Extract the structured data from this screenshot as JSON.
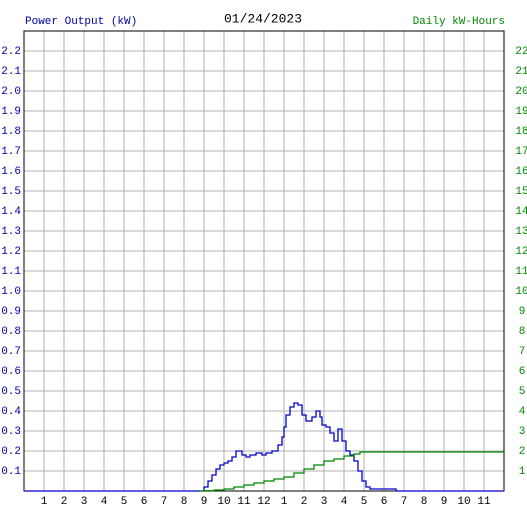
{
  "chart_data": {
    "type": "line",
    "title": "01/24/2023",
    "y_label": "Power Output (kW)",
    "y2_label": "Daily kW-Hours",
    "step": true,
    "grid": true,
    "xlim": [
      0,
      24
    ],
    "xticks": [
      1,
      2,
      3,
      4,
      5,
      6,
      7,
      8,
      9,
      10,
      11,
      12,
      {
        "value": 13,
        "label": "1"
      },
      {
        "value": 14,
        "label": "2"
      },
      {
        "value": 15,
        "label": "3"
      },
      {
        "value": 16,
        "label": "4"
      },
      {
        "value": 17,
        "label": "5"
      },
      {
        "value": 18,
        "label": "6"
      },
      {
        "value": 19,
        "label": "7"
      },
      {
        "value": 20,
        "label": "8"
      },
      {
        "value": 21,
        "label": "9"
      },
      {
        "value": 22,
        "label": "10"
      },
      {
        "value": 23,
        "label": "11"
      }
    ],
    "ylim": [
      0,
      2.3
    ],
    "yticks": [
      0.1,
      0.2,
      0.3,
      0.4,
      0.5,
      0.6,
      0.7,
      0.8,
      0.9,
      {
        "value": 1,
        "label": "1.0"
      },
      1.1,
      1.2,
      1.3,
      1.4,
      1.5,
      1.6,
      1.7,
      1.8,
      1.9,
      {
        "value": 2,
        "label": "2.0"
      },
      2.1,
      2.2
    ],
    "y2lim": [
      0,
      23
    ],
    "y2ticks": [
      1,
      2,
      3,
      4,
      5,
      6,
      7,
      8,
      9,
      10,
      11,
      12,
      13,
      14,
      15,
      16,
      17,
      18,
      19,
      20,
      21,
      22
    ],
    "series": [
      {
        "name": "Power Output (kW)",
        "color": "#0000cc",
        "x": [
          0,
          8.8,
          9.0,
          9.2,
          9.4,
          9.6,
          9.8,
          10.0,
          10.2,
          10.4,
          10.6,
          10.8,
          10.9,
          11.1,
          11.3,
          11.6,
          11.9,
          12.1,
          12.4,
          12.7,
          12.9,
          13.0,
          13.1,
          13.3,
          13.5,
          13.7,
          13.9,
          14.1,
          14.4,
          14.6,
          14.8,
          14.9,
          15.1,
          15.3,
          15.5,
          15.7,
          15.9,
          16.1,
          16.3,
          16.5,
          16.7,
          16.9,
          17.1,
          17.3,
          18.6,
          24
        ],
        "values": [
          0,
          0,
          0.02,
          0.05,
          0.08,
          0.11,
          0.13,
          0.14,
          0.15,
          0.17,
          0.2,
          0.2,
          0.18,
          0.17,
          0.18,
          0.19,
          0.18,
          0.19,
          0.2,
          0.23,
          0.27,
          0.32,
          0.38,
          0.42,
          0.44,
          0.43,
          0.38,
          0.35,
          0.37,
          0.4,
          0.37,
          0.33,
          0.32,
          0.29,
          0.25,
          0.31,
          0.25,
          0.2,
          0.18,
          0.15,
          0.1,
          0.05,
          0.02,
          0.01,
          0,
          0
        ]
      },
      {
        "name": "Daily kW-Hours",
        "color": "#008800",
        "axis": "y2",
        "x": [
          8.8,
          9.0,
          9.5,
          10.0,
          10.5,
          11.0,
          11.5,
          12.0,
          12.5,
          13.0,
          13.5,
          14.0,
          14.5,
          15.0,
          15.5,
          16.0,
          16.5,
          16.8,
          24
        ],
        "values": [
          0,
          0.02,
          0.05,
          0.1,
          0.2,
          0.3,
          0.4,
          0.5,
          0.6,
          0.7,
          0.9,
          1.1,
          1.3,
          1.5,
          1.6,
          1.75,
          1.85,
          1.95,
          1.95
        ]
      }
    ]
  }
}
